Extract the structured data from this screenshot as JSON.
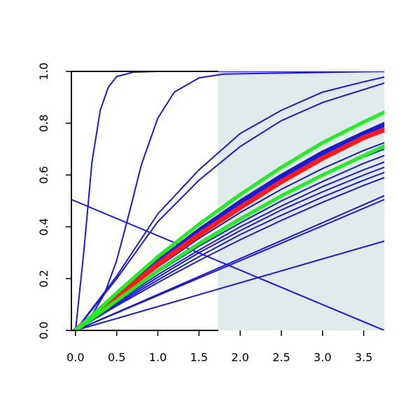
{
  "chart_data": {
    "type": "line",
    "title": "",
    "xlabel": "",
    "ylabel": "",
    "xlim": [
      -0.05,
      3.75
    ],
    "ylim": [
      0,
      1.0
    ],
    "x_ticks": [
      "0.0",
      "0.5",
      "1.0",
      "1.5",
      "2.0",
      "2.5",
      "3.0",
      "3.5"
    ],
    "y_ticks": [
      "0.0",
      "0.2",
      "0.4",
      "0.6",
      "0.8",
      "1.0"
    ],
    "grid": false,
    "legend": "none",
    "shaded_region": {
      "x_start": 1.73,
      "x_end": 3.75,
      "color": "#e0ecec"
    },
    "colors": {
      "blue": "#1a1ad6",
      "red": "#ff1a1a",
      "green": "#22ee22",
      "axis": "#000000"
    },
    "series": [
      {
        "color": "blue",
        "width": 2,
        "x": [
          0,
          0.1,
          0.2,
          0.3,
          0.4,
          0.5,
          0.7,
          1.0,
          3.75
        ],
        "y": [
          0,
          0.3,
          0.65,
          0.85,
          0.94,
          0.98,
          0.997,
          1.0,
          1.0
        ]
      },
      {
        "color": "blue",
        "width": 2,
        "x": [
          0,
          0.2,
          0.35,
          0.5,
          0.65,
          0.8,
          1.0,
          1.2,
          1.5,
          1.8,
          3.75
        ],
        "y": [
          0,
          0.06,
          0.14,
          0.27,
          0.45,
          0.64,
          0.82,
          0.92,
          0.975,
          0.99,
          1.0
        ]
      },
      {
        "color": "blue",
        "width": 2,
        "x": [
          0,
          0.5,
          1.0,
          1.5,
          2.0,
          2.5,
          3.0,
          3.5,
          3.75
        ],
        "y": [
          0,
          0.21,
          0.45,
          0.62,
          0.76,
          0.85,
          0.92,
          0.96,
          0.978
        ]
      },
      {
        "color": "blue",
        "width": 2,
        "x": [
          0,
          0.5,
          1.0,
          1.5,
          2.0,
          2.5,
          3.0,
          3.5,
          3.75
        ],
        "y": [
          0,
          0.2,
          0.42,
          0.58,
          0.71,
          0.81,
          0.88,
          0.93,
          0.955
        ]
      },
      {
        "color": "blue",
        "width": 2,
        "x": [
          0,
          0.5,
          1.0,
          1.5,
          2.0,
          2.5,
          3.0,
          3.5,
          3.75
        ],
        "y": [
          0,
          0.125,
          0.245,
          0.355,
          0.455,
          0.545,
          0.625,
          0.695,
          0.725
        ]
      },
      {
        "color": "blue",
        "width": 2,
        "x": [
          0,
          0.5,
          1.0,
          1.5,
          2.0,
          2.5,
          3.0,
          3.5,
          3.75
        ],
        "y": [
          0,
          0.12,
          0.235,
          0.34,
          0.435,
          0.52,
          0.6,
          0.67,
          0.7
        ]
      },
      {
        "color": "blue",
        "width": 2,
        "x": [
          0,
          0.5,
          1.0,
          1.5,
          2.0,
          2.5,
          3.0,
          3.5,
          3.75
        ],
        "y": [
          0,
          0.115,
          0.225,
          0.325,
          0.415,
          0.5,
          0.575,
          0.645,
          0.675
        ]
      },
      {
        "color": "blue",
        "width": 2,
        "x": [
          0,
          0.5,
          1.0,
          1.5,
          2.0,
          2.5,
          3.0,
          3.5,
          3.75
        ],
        "y": [
          0,
          0.11,
          0.215,
          0.31,
          0.4,
          0.48,
          0.555,
          0.62,
          0.65
        ]
      },
      {
        "color": "blue",
        "width": 2,
        "x": [
          0,
          0.5,
          1.0,
          1.5,
          2.0,
          2.5,
          3.0,
          3.5,
          3.75
        ],
        "y": [
          0,
          0.105,
          0.205,
          0.3,
          0.385,
          0.465,
          0.535,
          0.6,
          0.63
        ]
      },
      {
        "color": "blue",
        "width": 2,
        "x": [
          0,
          0.5,
          1.0,
          1.5,
          2.0,
          2.5,
          3.0,
          3.5,
          3.75
        ],
        "y": [
          0,
          0.1,
          0.195,
          0.285,
          0.37,
          0.445,
          0.515,
          0.58,
          0.61
        ]
      },
      {
        "color": "blue",
        "width": 2,
        "x": [
          0,
          0.5,
          1.0,
          1.5,
          2.0,
          2.5,
          3.0,
          3.5,
          3.75
        ],
        "y": [
          0,
          0.095,
          0.185,
          0.27,
          0.35,
          0.425,
          0.495,
          0.56,
          0.59
        ]
      },
      {
        "color": "blue",
        "width": 2,
        "x": [
          0,
          3.75
        ],
        "y": [
          0,
          0.52
        ]
      },
      {
        "color": "blue",
        "width": 2,
        "x": [
          0,
          3.75
        ],
        "y": [
          0,
          0.505
        ]
      },
      {
        "color": "blue",
        "width": 2,
        "x": [
          0,
          3.75
        ],
        "y": [
          0,
          0.345
        ]
      },
      {
        "color": "blue",
        "width": 2,
        "x": [
          -0.05,
          3.75
        ],
        "y": [
          0.505,
          0.0
        ]
      },
      {
        "color": "blue",
        "width": 7,
        "x": [
          0,
          0.5,
          1.0,
          1.5,
          2.0,
          2.5,
          3.0,
          3.5,
          3.75
        ],
        "y": [
          0,
          0.135,
          0.265,
          0.385,
          0.495,
          0.595,
          0.685,
          0.76,
          0.795
        ]
      },
      {
        "color": "red",
        "width": 7,
        "x": [
          0,
          0.5,
          1.0,
          1.5,
          2.0,
          2.5,
          3.0,
          3.5,
          3.75
        ],
        "y": [
          0,
          0.13,
          0.255,
          0.37,
          0.475,
          0.575,
          0.665,
          0.745,
          0.775
        ]
      },
      {
        "color": "green",
        "width": 5,
        "x": [
          0,
          0.5,
          1.0,
          1.5,
          2.0,
          2.5,
          3.0,
          3.5,
          3.75
        ],
        "y": [
          0,
          0.145,
          0.285,
          0.41,
          0.525,
          0.63,
          0.725,
          0.805,
          0.842
        ]
      },
      {
        "color": "green",
        "width": 5,
        "x": [
          0,
          0.5,
          1.0,
          1.5,
          2.0,
          2.5,
          3.0,
          3.5,
          3.75
        ],
        "y": [
          0,
          0.115,
          0.23,
          0.335,
          0.43,
          0.52,
          0.6,
          0.675,
          0.712
        ]
      }
    ]
  }
}
